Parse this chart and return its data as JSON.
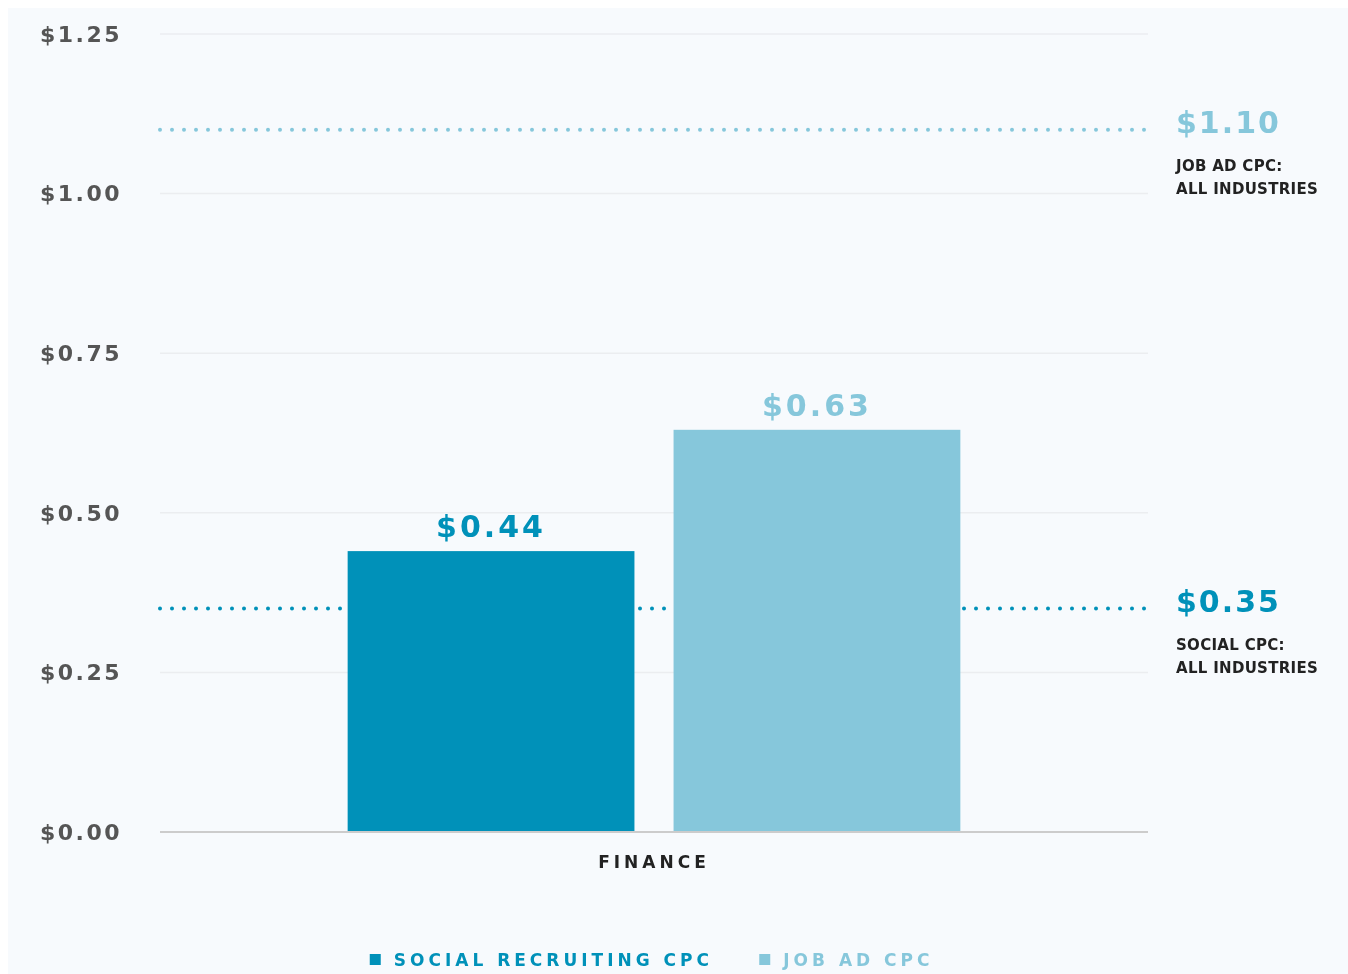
{
  "chart_data": {
    "type": "bar",
    "categories": [
      "FINANCE"
    ],
    "series": [
      {
        "name": "SOCIAL RECRUITING CPC",
        "color": "#0091b9",
        "values": [
          0.44
        ],
        "value_labels": [
          "$0.44"
        ]
      },
      {
        "name": "JOB AD CPC",
        "color": "#86c7db",
        "values": [
          0.63
        ],
        "value_labels": [
          "$0.63"
        ]
      }
    ],
    "ylim": [
      0,
      1.25
    ],
    "yticks": [
      {
        "value": 0,
        "label": "$0.00"
      },
      {
        "value": 0.25,
        "label": "$0.25"
      },
      {
        "value": 0.5,
        "label": "$0.50"
      },
      {
        "value": 0.75,
        "label": "$0.75"
      },
      {
        "value": 1,
        "label": "$1.00"
      },
      {
        "value": 1.25,
        "label": "$1.25"
      }
    ],
    "grid": "y",
    "ref_lines": [
      {
        "axis": "y",
        "value": 1.1,
        "label": "$1.10\nJOB AD CPC:\nALL INDUSTRIES",
        "color": "#86c7db",
        "line_style": "dotted"
      },
      {
        "axis": "y",
        "value": 0.35,
        "label": "$0.35\nSOCIAL CPC:\nALL INDUSTRIES",
        "color": "#0091b9",
        "line_style": "dotted"
      }
    ],
    "legend": "bottom"
  }
}
